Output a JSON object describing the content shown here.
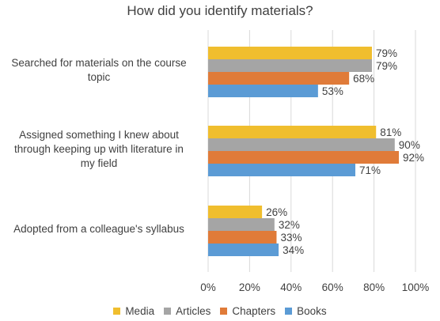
{
  "chart_data": {
    "type": "bar",
    "orientation": "horizontal",
    "title": "How did you identify materials?",
    "categories": [
      "Searched for materials on the course topic",
      "Assigned something I knew about through keeping up with literature in my field",
      "Adopted from a colleague's syllabus"
    ],
    "category_lines": [
      [
        "Searched for materials on the course",
        "topic"
      ],
      [
        "Assigned something I knew about",
        "through keeping up with literature in",
        "my field"
      ],
      [
        "Adopted from a colleague's syllabus"
      ]
    ],
    "series": [
      {
        "name": "Media",
        "color": "#F0BE2E",
        "values": [
          79,
          81,
          26
        ]
      },
      {
        "name": "Articles",
        "color": "#A5A5A5",
        "values": [
          79,
          90,
          32
        ]
      },
      {
        "name": "Chapters",
        "color": "#E07B39",
        "values": [
          68,
          92,
          33
        ]
      },
      {
        "name": "Books",
        "color": "#5B9BD5",
        "values": [
          53,
          71,
          34
        ]
      }
    ],
    "value_suffix": "%",
    "xlim": [
      0,
      100
    ],
    "xticks": [
      "0%",
      "20%",
      "40%",
      "60%",
      "80%",
      "100%"
    ],
    "xlabel": "",
    "ylabel": "",
    "grid": true,
    "legend_position": "bottom"
  }
}
